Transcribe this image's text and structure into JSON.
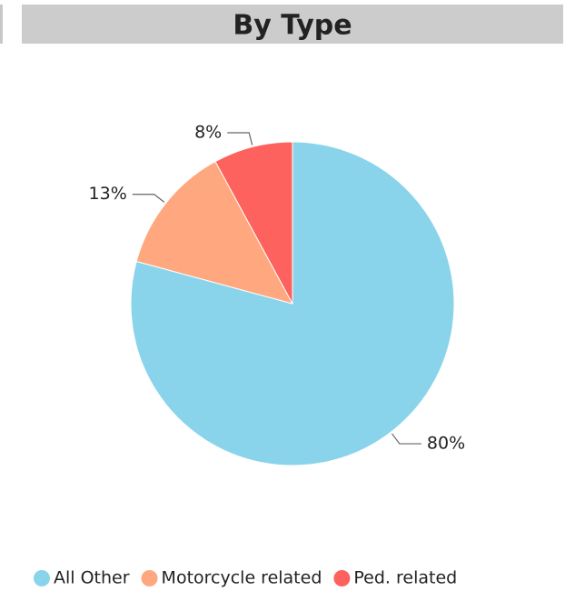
{
  "chart_data": {
    "type": "pie",
    "title": "By Type",
    "categories": [
      "All Other",
      "Motorcycle related",
      "Ped. related"
    ],
    "values": [
      80,
      13,
      8
    ],
    "value_labels": [
      "80%",
      "13%",
      "8%"
    ],
    "colors": [
      "#8AD4EB",
      "#FFA77F",
      "#FD625E"
    ],
    "legend": "bottom"
  }
}
